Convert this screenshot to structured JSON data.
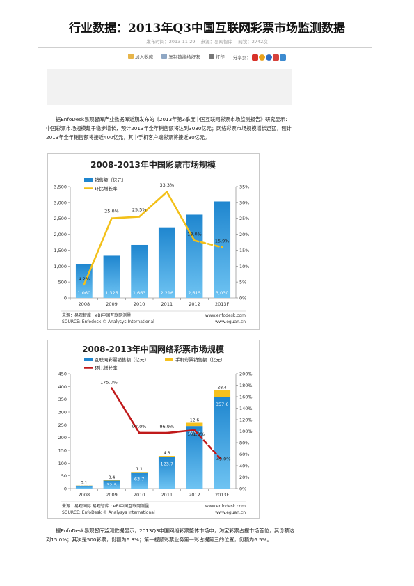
{
  "article": {
    "title": "行业数据：2013年Q3中国互联网彩票市场监测数据",
    "meta": {
      "published": "发布时间：2013-11-29",
      "source": "来源：易观智库",
      "views": "阅读：2742次"
    },
    "toolbar": {
      "favorite": "加入收藏",
      "copy_link": "复制链接给好友",
      "print": "打印",
      "share": "分享到："
    },
    "paragraph1": "据EnfoDesk易观智库产业数据库近期发布的《2013年第3季度中国互联网彩票市场监测报告》研究显示：中国彩票市场规模趋于稳步增长，预计2013年全年销售额将达到3030亿元；网络彩票市场规模增长迅猛，预计2013年全年销售额将接近400亿元，其中手机客户端彩票将接近30亿元。",
    "paragraph2": "据EnfoDesk易观智库监测数据显示，2013Q3中国网络彩票整体市场中，淘宝彩票占据市场首位，其份额达到15.0%；其次是500彩票，份额为6.8%；第一视频彩票业务第一彩占据第三的位置，份额为6.5%。"
  },
  "colors": {
    "bar_blue": "#1f86cf",
    "bar_blue_light": "#6ec3f2",
    "mobile_gold": "#f5c11e",
    "growth_line_1": "#f3c019",
    "growth_line_2": "#c0191a"
  },
  "chart_data": [
    {
      "type": "bar",
      "title": "2008-2013年中国彩票市场规模",
      "categories": [
        "2008",
        "2009",
        "2010",
        "2011",
        "2012",
        "2013F"
      ],
      "series": [
        {
          "name": "销售额（亿元）",
          "axis": "left",
          "values": [
            1060,
            1325,
            1663,
            2216,
            2615,
            3030
          ],
          "labels": [
            "1,060",
            "1,325",
            "1,663",
            "2,216",
            "2,615",
            "3,030"
          ]
        },
        {
          "name": "环比增长率",
          "type": "line",
          "axis": "right",
          "values": [
            4.2,
            25.0,
            25.5,
            33.3,
            18.0,
            15.9
          ],
          "labels": [
            "4.2%",
            "25.0%",
            "25.5%",
            "33.3%",
            "18.0%",
            "15.9%"
          ]
        }
      ],
      "left_ticks": [
        "0",
        "500",
        "1,000",
        "1,500",
        "2,000",
        "2,500",
        "3,000",
        "3,500"
      ],
      "right_ticks": [
        "0%",
        "5%",
        "10%",
        "15%",
        "20%",
        "25%",
        "30%",
        "35%"
      ],
      "ylim": [
        0,
        3500
      ],
      "y2lim": [
        0,
        35
      ],
      "legend_position": "top-left",
      "source_cn": "来源：易观智库 · eBI中国互联网测量",
      "source_en": "SOURCE: Enfodesk © Analysys International",
      "site1": "www.enfodesk.com",
      "site2": "www.eguan.cn"
    },
    {
      "type": "bar",
      "title": "2008-2013年中国网络彩票市场规模",
      "categories": [
        "2008",
        "2009",
        "2010",
        "2011",
        "2012",
        "2013F"
      ],
      "series": [
        {
          "name": "互联网彩票销售额（亿元）",
          "axis": "left",
          "values": [
            11.5,
            32.5,
            63.7,
            123.7,
            245.1,
            357.6
          ],
          "labels": [
            "11.5",
            "32.5",
            "63.7",
            "123.7",
            "245.1",
            "357.6"
          ]
        },
        {
          "name": "手机彩票销售额（亿元）",
          "axis": "left",
          "values": [
            0.1,
            0.4,
            1.1,
            4.3,
            12.6,
            28.4
          ],
          "labels": [
            "0.1",
            "0.4",
            "1.1",
            "4.3",
            "12.6",
            "28.4"
          ]
        },
        {
          "name": "环比增长率",
          "type": "line",
          "axis": "right",
          "values": [
            null,
            175.0,
            97.0,
            96.9,
            101.8,
            49.0
          ],
          "labels": [
            "",
            "175.0%",
            "97.0%",
            "96.9%",
            "101.8%",
            "49.0%"
          ]
        }
      ],
      "left_ticks": [
        "0",
        "50",
        "100",
        "150",
        "200",
        "250",
        "300",
        "350",
        "400",
        "450"
      ],
      "right_ticks": [
        "0%",
        "20%",
        "40%",
        "60%",
        "80%",
        "100%",
        "120%",
        "140%",
        "160%",
        "180%",
        "200%"
      ],
      "ylim": [
        0,
        450
      ],
      "y2lim": [
        0,
        200
      ],
      "legend_position": "top",
      "source_cn": "来源：易观国际  易观智库 · eBI中国互联网测量",
      "source_en": "SOURCE: EnfoDesk © Analysys International",
      "site1": "www.enfodesk.com",
      "site2": "www.eguan.cn"
    }
  ]
}
